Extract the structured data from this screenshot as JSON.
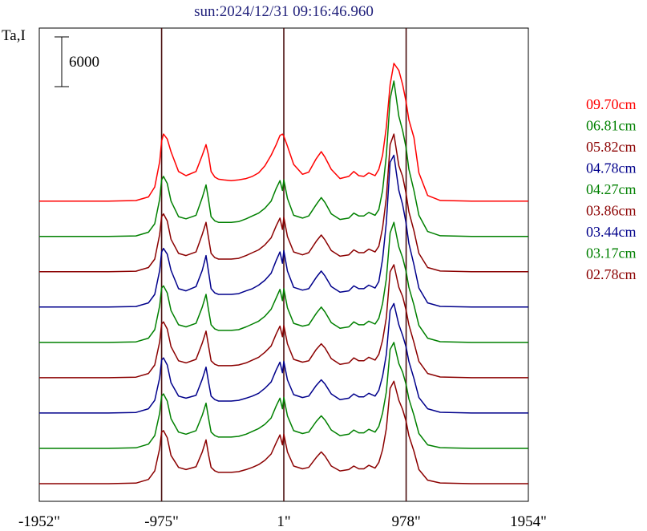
{
  "chart_data": {
    "type": "line",
    "title": "sun:2024/12/31 09:16:46.960",
    "ylabel": "Ta,I",
    "scale_bar_label": "6000",
    "x_ticks": [
      {
        "value": -1952,
        "label": "-1952\""
      },
      {
        "value": -975,
        "label": "-975\""
      },
      {
        "value": 1,
        "label": "1\""
      },
      {
        "value": 978,
        "label": "978\""
      },
      {
        "value": 1954,
        "label": "1954\""
      }
    ],
    "xlim": [
      -1952,
      1954
    ],
    "ylim": [
      0,
      67000
    ],
    "reference_lines_x": [
      -975,
      1,
      978
    ],
    "grid": false,
    "legend_position": "right",
    "profile_x": [
      -1952,
      -1400,
      -1180,
      -1080,
      -1030,
      -990,
      -975,
      -960,
      -930,
      -900,
      -840,
      -780,
      -700,
      -650,
      -620,
      -600,
      -580,
      -550,
      -520,
      -480,
      -420,
      -360,
      -300,
      -250,
      -200,
      -150,
      -100,
      -60,
      -30,
      -10,
      1,
      30,
      80,
      150,
      200,
      260,
      300,
      330,
      380,
      450,
      520,
      560,
      600,
      640,
      680,
      730,
      760,
      790,
      820,
      850,
      880,
      920,
      950,
      978,
      1000,
      1040,
      1080,
      1150,
      1250,
      1500,
      1954
    ],
    "series": [
      {
        "name": "09.70cm",
        "color": "#ff0000",
        "offset": 42500,
        "values": [
          0,
          0,
          80,
          600,
          2000,
          5600,
          8500,
          9500,
          8800,
          7000,
          4200,
          3600,
          4200,
          6500,
          8000,
          6500,
          4200,
          3400,
          3100,
          3000,
          2900,
          3000,
          3200,
          3500,
          4000,
          5000,
          6500,
          8000,
          9300,
          9500,
          9200,
          7800,
          5200,
          3800,
          4100,
          6000,
          7000,
          6200,
          4500,
          3200,
          3500,
          4200,
          3600,
          3500,
          4000,
          3600,
          4500,
          6500,
          10500,
          16500,
          19500,
          18500,
          16500,
          14000,
          11500,
          9000,
          4000,
          800,
          100,
          0,
          0
        ]
      },
      {
        "name": "06.81cm",
        "color": "#008000",
        "offset": 37500,
        "values": [
          0,
          0,
          80,
          600,
          1800,
          5300,
          8000,
          8500,
          7500,
          5000,
          2800,
          2500,
          3000,
          5500,
          7300,
          5200,
          2800,
          2200,
          2000,
          2000,
          2000,
          2100,
          2500,
          2900,
          3300,
          4000,
          5000,
          6800,
          7900,
          6500,
          8000,
          5400,
          3000,
          2600,
          2900,
          4500,
          5500,
          4800,
          3200,
          2400,
          2600,
          3300,
          2900,
          2900,
          3400,
          3000,
          3800,
          6500,
          11500,
          19500,
          22000,
          17000,
          15000,
          12500,
          9500,
          6500,
          3000,
          700,
          100,
          0,
          0
        ]
      },
      {
        "name": "05.82cm",
        "color": "#8b0000",
        "offset": 32500,
        "values": [
          0,
          0,
          80,
          600,
          1800,
          5300,
          7800,
          8200,
          7200,
          4600,
          2600,
          2300,
          2800,
          5300,
          7000,
          4800,
          2600,
          2000,
          1800,
          1800,
          1800,
          1900,
          2300,
          2700,
          3100,
          3800,
          4800,
          6500,
          7600,
          6000,
          7700,
          5000,
          2800,
          2400,
          2700,
          4300,
          5200,
          4500,
          3000,
          2200,
          2400,
          3100,
          2700,
          2700,
          3200,
          2800,
          3600,
          6200,
          10500,
          18000,
          19500,
          15000,
          13500,
          11000,
          8500,
          5800,
          2600,
          600,
          100,
          0,
          0
        ]
      },
      {
        "name": "04.78cm",
        "color": "#00008b",
        "offset": 27500,
        "values": [
          0,
          0,
          80,
          600,
          1800,
          5200,
          7800,
          8300,
          7500,
          5200,
          2600,
          2300,
          2900,
          5200,
          7300,
          5000,
          2600,
          2000,
          1800,
          1800,
          1800,
          1900,
          2300,
          2600,
          3100,
          3800,
          4800,
          6600,
          7800,
          6200,
          8000,
          5100,
          2800,
          2400,
          2600,
          4200,
          5100,
          4400,
          2900,
          2100,
          2300,
          3000,
          2600,
          2600,
          3100,
          2700,
          3600,
          6800,
          12000,
          20500,
          21500,
          16500,
          14500,
          11800,
          9000,
          6000,
          2700,
          600,
          100,
          0,
          0
        ]
      },
      {
        "name": "04.27cm",
        "color": "#008000",
        "offset": 22500,
        "values": [
          0,
          0,
          80,
          600,
          1800,
          5200,
          7700,
          8000,
          7000,
          4500,
          2500,
          2200,
          2700,
          5000,
          6800,
          4600,
          2500,
          1900,
          1700,
          1700,
          1700,
          1800,
          2200,
          2600,
          3000,
          3700,
          4700,
          6300,
          7500,
          5900,
          7600,
          4900,
          2700,
          2300,
          2500,
          4100,
          5000,
          4300,
          2800,
          2000,
          2200,
          2900,
          2500,
          2500,
          3000,
          2600,
          3400,
          5500,
          9000,
          15500,
          17000,
          13500,
          12000,
          10000,
          7800,
          5300,
          2400,
          600,
          100,
          0,
          0
        ]
      },
      {
        "name": "03.86cm",
        "color": "#8b0000",
        "offset": 17500,
        "values": [
          0,
          0,
          80,
          600,
          1800,
          5100,
          7600,
          7900,
          6900,
          4400,
          2400,
          2100,
          2600,
          4900,
          6600,
          4500,
          2400,
          1900,
          1700,
          1700,
          1700,
          1800,
          2100,
          2500,
          2900,
          3600,
          4500,
          6200,
          7300,
          5800,
          7400,
          4800,
          2600,
          2200,
          2400,
          4000,
          4800,
          4200,
          2700,
          1900,
          2100,
          2800,
          2400,
          2400,
          2900,
          2500,
          3300,
          5300,
          8500,
          15000,
          16000,
          12800,
          11500,
          9500,
          7500,
          5000,
          2300,
          600,
          100,
          0,
          0
        ]
      },
      {
        "name": "03.44cm",
        "color": "#00008b",
        "offset": 12500,
        "values": [
          0,
          0,
          80,
          600,
          1800,
          5000,
          7500,
          7800,
          6800,
          4300,
          2400,
          2100,
          2500,
          4800,
          6500,
          4400,
          2400,
          1900,
          1700,
          1700,
          1700,
          1800,
          2100,
          2400,
          2800,
          3500,
          4400,
          6100,
          7200,
          5700,
          7300,
          4700,
          2600,
          2200,
          2400,
          3900,
          4700,
          4100,
          2700,
          1900,
          2100,
          2700,
          2300,
          2300,
          2800,
          2400,
          3200,
          5200,
          8300,
          14500,
          15500,
          12500,
          11000,
          9300,
          7300,
          4900,
          2200,
          600,
          100,
          0,
          0
        ]
      },
      {
        "name": "03.17cm",
        "color": "#008000",
        "offset": 7500,
        "values": [
          0,
          0,
          80,
          600,
          1800,
          5000,
          7400,
          7700,
          6700,
          4200,
          2300,
          2000,
          2500,
          4700,
          6400,
          4300,
          2300,
          1800,
          1600,
          1600,
          1600,
          1700,
          2000,
          2400,
          2800,
          3400,
          4300,
          6000,
          7100,
          5600,
          7200,
          4600,
          2500,
          2100,
          2300,
          3800,
          4600,
          4000,
          2600,
          1800,
          2000,
          2600,
          2200,
          2200,
          2700,
          2300,
          3100,
          5000,
          8000,
          14000,
          15000,
          12000,
          10800,
          9000,
          7000,
          4700,
          2100,
          500,
          100,
          0,
          0
        ]
      },
      {
        "name": "02.78cm",
        "color": "#8b0000",
        "offset": 2500,
        "values": [
          0,
          0,
          80,
          600,
          1800,
          5000,
          7300,
          7500,
          6500,
          4000,
          2300,
          2000,
          2400,
          4500,
          6200,
          4100,
          2300,
          1800,
          1600,
          1600,
          1600,
          1700,
          2000,
          2300,
          2700,
          3300,
          4200,
          5800,
          6900,
          5500,
          7000,
          4500,
          2500,
          2100,
          2300,
          3700,
          4500,
          3900,
          2500,
          1800,
          2000,
          2500,
          2100,
          2100,
          2600,
          2200,
          3000,
          4800,
          7800,
          13500,
          14500,
          11800,
          10500,
          8800,
          6800,
          4600,
          2000,
          500,
          100,
          0,
          0
        ]
      }
    ]
  }
}
